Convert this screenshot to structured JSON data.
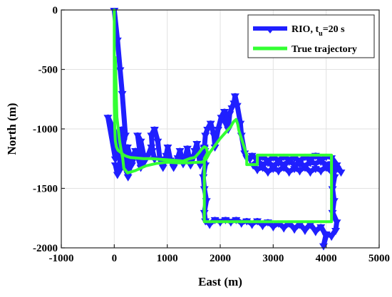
{
  "chart_data": {
    "type": "line",
    "xlabel": "East (m)",
    "ylabel": "North (m)",
    "xlim": [
      -1000,
      5000
    ],
    "ylim": [
      -2000,
      0
    ],
    "x_ticks": [
      -1000,
      0,
      1000,
      2000,
      3000,
      4000,
      5000
    ],
    "y_ticks": [
      0,
      -500,
      -1000,
      -1500,
      -2000
    ],
    "grid": true,
    "legend_position": "top-right",
    "colors": {
      "rio": "#1f1fff",
      "truth": "#33ff33"
    },
    "legend": {
      "rio": {
        "main": "RIO, t",
        "sub": "u",
        "rest": "=20 s"
      },
      "truth": {
        "main": "True trajectory"
      }
    },
    "series": [
      {
        "name": "RIO, t_u=20 s",
        "style": "triangle-markers",
        "x": [
          0,
          60,
          110,
          150,
          210,
          160,
          60,
          20,
          -120,
          40,
          120,
          90,
          20,
          60,
          170,
          260,
          220,
          170,
          140,
          200,
          260,
          330,
          400,
          330,
          260,
          250,
          330,
          420,
          500,
          560,
          500,
          440,
          480,
          560,
          640,
          700,
          760,
          720,
          700,
          760,
          820,
          860,
          920,
          980,
          1010,
          1060,
          1120,
          1200,
          1240,
          1300,
          1340,
          1380,
          1440,
          1500,
          1520,
          1560,
          1620,
          1660,
          1700,
          1720,
          1760,
          1820,
          1880,
          1900,
          1960,
          2020,
          2080,
          2100,
          2150,
          2180,
          2220,
          2260,
          2280,
          2320,
          2380,
          2400,
          2460,
          2500,
          2560,
          2600,
          2700,
          2800,
          2900,
          3000,
          3100,
          3200,
          3300,
          3400,
          3500,
          3600,
          3700,
          3800,
          3900,
          4000,
          4100,
          4200,
          4280,
          4200,
          4100,
          4000,
          3900,
          3800,
          3700,
          3600,
          3500,
          3400,
          3300,
          3200,
          3100,
          3000,
          2900,
          2800,
          2700,
          2620,
          2700,
          2800,
          2900,
          3000,
          3100,
          3200,
          3300,
          3400,
          3500,
          3600,
          3700,
          3800,
          3900,
          4000,
          4100,
          4160,
          4120,
          4150,
          4120,
          4200,
          4180,
          4100,
          4000,
          3950,
          4000,
          3900,
          3800,
          3700,
          3600,
          3500,
          3400,
          3300,
          3200,
          3100,
          3000,
          2900,
          2800,
          2700,
          2600,
          2500,
          2400,
          2300,
          2200,
          2100,
          2000,
          1900,
          1800,
          1720,
          1700,
          1740,
          1700,
          1680,
          1720,
          1700,
          1690,
          1710,
          1700
        ],
        "y": [
          0,
          -250,
          -500,
          -700,
          -1050,
          -1150,
          -1200,
          -1250,
          -900,
          -1050,
          -1200,
          -1350,
          -1300,
          -1380,
          -1300,
          -1380,
          -1250,
          -1100,
          -1000,
          -1250,
          -1400,
          -1250,
          -1180,
          -1300,
          -1220,
          -1150,
          -1280,
          -1200,
          -1320,
          -1230,
          -1100,
          -1050,
          -1180,
          -1280,
          -1220,
          -1150,
          -1250,
          -1180,
          -1050,
          -1000,
          -1100,
          -1250,
          -1320,
          -1220,
          -1150,
          -1260,
          -1320,
          -1240,
          -1180,
          -1290,
          -1240,
          -1160,
          -1300,
          -1230,
          -1180,
          -1120,
          -1300,
          -1230,
          -1160,
          -1050,
          -1000,
          -950,
          -1050,
          -1150,
          -1000,
          -900,
          -850,
          -950,
          -1000,
          -870,
          -820,
          -780,
          -720,
          -800,
          -950,
          -1050,
          -1200,
          -1240,
          -1250,
          -1220,
          -1260,
          -1230,
          -1270,
          -1235,
          -1265,
          -1230,
          -1260,
          -1240,
          -1270,
          -1230,
          -1260,
          -1220,
          -1260,
          -1230,
          -1240,
          -1300,
          -1360,
          -1330,
          -1360,
          -1320,
          -1350,
          -1330,
          -1360,
          -1320,
          -1350,
          -1330,
          -1360,
          -1320,
          -1350,
          -1330,
          -1360,
          -1320,
          -1340,
          -1300,
          -1270,
          -1300,
          -1280,
          -1310,
          -1280,
          -1300,
          -1270,
          -1300,
          -1290,
          -1310,
          -1280,
          -1290,
          -1270,
          -1300,
          -1290,
          -1400,
          -1500,
          -1600,
          -1700,
          -1780,
          -1850,
          -1900,
          -1880,
          -1980,
          -1900,
          -1820,
          -1860,
          -1800,
          -1850,
          -1800,
          -1840,
          -1790,
          -1830,
          -1790,
          -1820,
          -1780,
          -1810,
          -1770,
          -1800,
          -1770,
          -1790,
          -1760,
          -1780,
          -1760,
          -1780,
          -1760,
          -1800,
          -1770,
          -1700,
          -1600,
          -1500,
          -1400,
          -1300,
          -1250,
          -1200,
          -1180,
          -1150
        ]
      },
      {
        "name": "True trajectory",
        "style": "line",
        "x": [
          0,
          0,
          0,
          10,
          20,
          40,
          70,
          130,
          180,
          230,
          300,
          420,
          550,
          700,
          850,
          1000,
          1150,
          1300,
          1420,
          1520,
          1600,
          1650,
          1700,
          1740,
          1760,
          1700,
          1700,
          1700,
          1700,
          1700,
          2500,
          3500,
          4100,
          4100,
          4100,
          4000,
          3000,
          2700,
          2700,
          2650,
          2500,
          2500,
          2450,
          2400,
          2350,
          2330,
          2300,
          2250,
          2200,
          2100,
          2000,
          1900,
          1800,
          1740,
          1700,
          1650,
          1600,
          1400,
          1200,
          1000,
          800,
          600,
          400,
          250,
          180,
          160,
          130,
          100,
          50,
          20
        ],
        "y": [
          0,
          -400,
          -800,
          -1000,
          -1100,
          -1150,
          -1180,
          -1200,
          -1220,
          -1230,
          -1240,
          -1245,
          -1250,
          -1250,
          -1255,
          -1260,
          -1265,
          -1270,
          -1250,
          -1240,
          -1200,
          -1170,
          -1150,
          -1160,
          -1200,
          -1250,
          -1400,
          -1600,
          -1700,
          -1780,
          -1780,
          -1780,
          -1780,
          -1500,
          -1220,
          -1220,
          -1220,
          -1220,
          -1300,
          -1300,
          -1300,
          -1220,
          -1150,
          -1080,
          -1010,
          -960,
          -920,
          -940,
          -980,
          -1030,
          -1080,
          -1140,
          -1200,
          -1250,
          -1270,
          -1280,
          -1280,
          -1285,
          -1285,
          -1280,
          -1290,
          -1310,
          -1350,
          -1370,
          -1330,
          -1250,
          -1180,
          -1100,
          -900,
          -400
        ]
      }
    ]
  }
}
